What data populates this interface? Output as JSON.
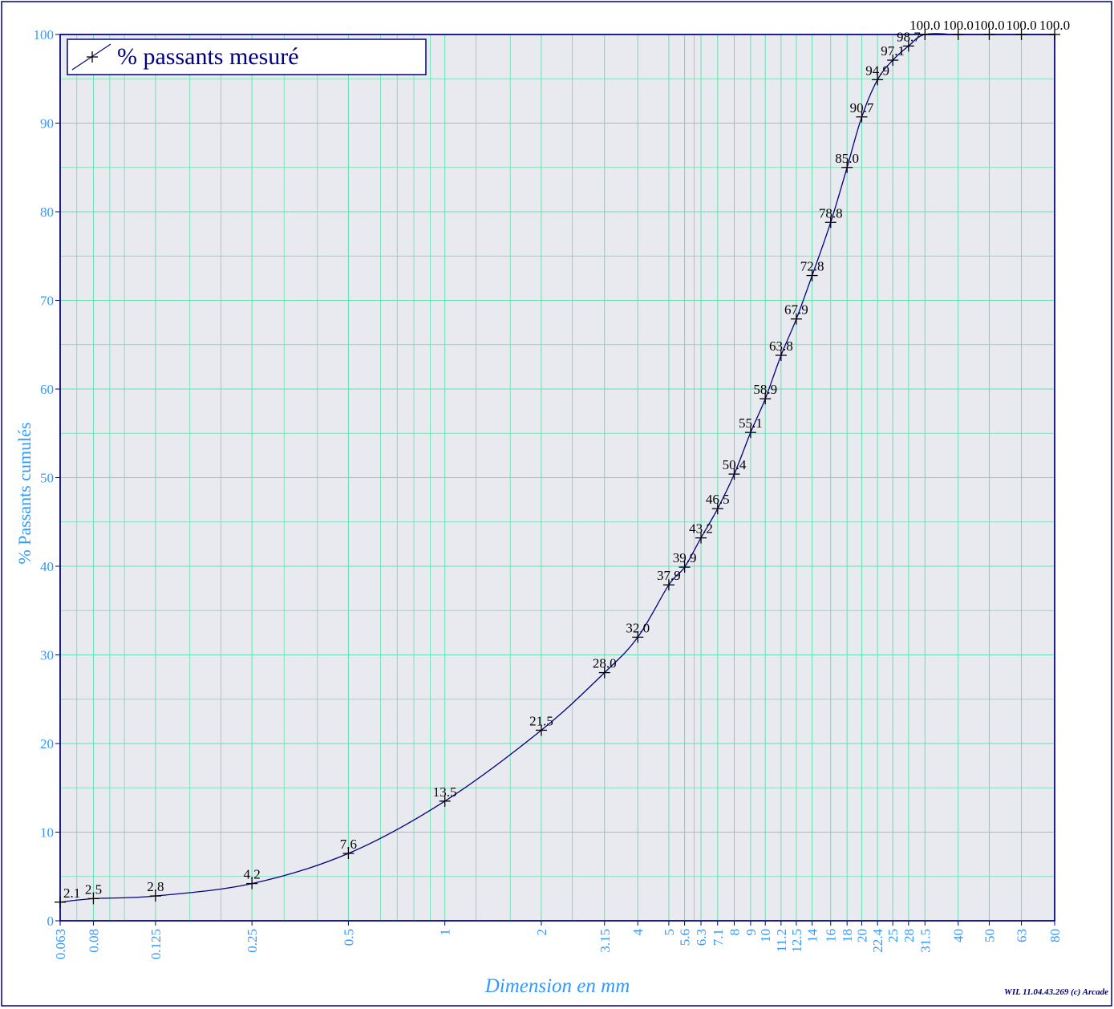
{
  "chart_data": {
    "type": "line",
    "title": "",
    "xlabel": "Dimension en mm",
    "ylabel": "% Passants cumulés",
    "x_scale": "log",
    "xlim": [
      0.063,
      80
    ],
    "ylim": [
      0,
      100
    ],
    "y_ticks": [
      "0",
      "10",
      "20",
      "30",
      "40",
      "50",
      "60",
      "70",
      "80",
      "90",
      "100"
    ],
    "x_ticks": [
      {
        "value": 0.063,
        "label": "0.063"
      },
      {
        "value": 0.08,
        "label": "0.08"
      },
      {
        "value": 0.125,
        "label": "0.125"
      },
      {
        "value": 0.25,
        "label": "0.25"
      },
      {
        "value": 0.5,
        "label": "0.5"
      },
      {
        "value": 1,
        "label": "1"
      },
      {
        "value": 2,
        "label": "2"
      },
      {
        "value": 3.15,
        "label": "3.15"
      },
      {
        "value": 4,
        "label": "4"
      },
      {
        "value": 5,
        "label": "5"
      },
      {
        "value": 5.6,
        "label": "5.6"
      },
      {
        "value": 6.3,
        "label": "6.3"
      },
      {
        "value": 7.1,
        "label": "7.1"
      },
      {
        "value": 8,
        "label": "8"
      },
      {
        "value": 9,
        "label": "9"
      },
      {
        "value": 10,
        "label": "10"
      },
      {
        "value": 11.2,
        "label": "11.2"
      },
      {
        "value": 12.5,
        "label": "12.5"
      },
      {
        "value": 14,
        "label": "14"
      },
      {
        "value": 16,
        "label": "16"
      },
      {
        "value": 18,
        "label": "18"
      },
      {
        "value": 20,
        "label": "20"
      },
      {
        "value": 22.4,
        "label": "22.4"
      },
      {
        "value": 25,
        "label": "25"
      },
      {
        "value": 28,
        "label": "28"
      },
      {
        "value": 31.5,
        "label": "31.5"
      },
      {
        "value": 40,
        "label": "40"
      },
      {
        "value": 50,
        "label": "50"
      },
      {
        "value": 63,
        "label": "63"
      },
      {
        "value": 80,
        "label": "80"
      }
    ],
    "grid": true,
    "legend": {
      "position": "top-left",
      "entries": [
        "% passants mesuré"
      ]
    },
    "series": [
      {
        "name": "% passants mesuré",
        "color": "#000080",
        "marker": "plus",
        "points": [
          {
            "x": 0.063,
            "y": 2.1,
            "label": "2.1"
          },
          {
            "x": 0.08,
            "y": 2.5,
            "label": "2.5"
          },
          {
            "x": 0.125,
            "y": 2.8,
            "label": "2.8"
          },
          {
            "x": 0.25,
            "y": 4.2,
            "label": "4.2"
          },
          {
            "x": 0.5,
            "y": 7.6,
            "label": "7.6"
          },
          {
            "x": 1,
            "y": 13.5,
            "label": "13.5"
          },
          {
            "x": 2,
            "y": 21.5,
            "label": "21.5"
          },
          {
            "x": 3.15,
            "y": 28.0,
            "label": "28.0"
          },
          {
            "x": 4,
            "y": 32.0,
            "label": "32.0"
          },
          {
            "x": 5,
            "y": 37.9,
            "label": "37.9"
          },
          {
            "x": 5.6,
            "y": 39.9,
            "label": "39.9"
          },
          {
            "x": 6.3,
            "y": 43.2,
            "label": "43.2"
          },
          {
            "x": 7.1,
            "y": 46.5,
            "label": "46.5"
          },
          {
            "x": 8,
            "y": 50.4,
            "label": "50.4"
          },
          {
            "x": 9,
            "y": 55.1,
            "label": "55.1"
          },
          {
            "x": 10,
            "y": 58.9,
            "label": "58.9"
          },
          {
            "x": 11.2,
            "y": 63.8,
            "label": "63.8"
          },
          {
            "x": 12.5,
            "y": 67.9,
            "label": "67.9"
          },
          {
            "x": 14,
            "y": 72.8,
            "label": "72.8"
          },
          {
            "x": 16,
            "y": 78.8,
            "label": "78.8"
          },
          {
            "x": 18,
            "y": 85.0,
            "label": "85.0"
          },
          {
            "x": 20,
            "y": 90.7,
            "label": "90.7"
          },
          {
            "x": 22.4,
            "y": 94.9,
            "label": "94.9"
          },
          {
            "x": 25,
            "y": 97.1,
            "label": "97.1"
          },
          {
            "x": 28,
            "y": 98.7,
            "label": "98.7"
          },
          {
            "x": 31.5,
            "y": 100.0,
            "label": "100.0"
          },
          {
            "x": 40,
            "y": 100.0,
            "label": "100.0"
          },
          {
            "x": 50,
            "y": 100.0,
            "label": "100.0"
          },
          {
            "x": 63,
            "y": 100.0,
            "label": "100.0"
          },
          {
            "x": 80,
            "y": 100.0,
            "label": "100.0"
          }
        ]
      }
    ],
    "footer": "WIL 11.04.43.269 (c) Arcade",
    "colors": {
      "plot_background": "#e8eaef",
      "grid": "#66e0b0",
      "frame": "#000080",
      "axis_text": "#3399ff",
      "point_label": "#000000"
    }
  }
}
